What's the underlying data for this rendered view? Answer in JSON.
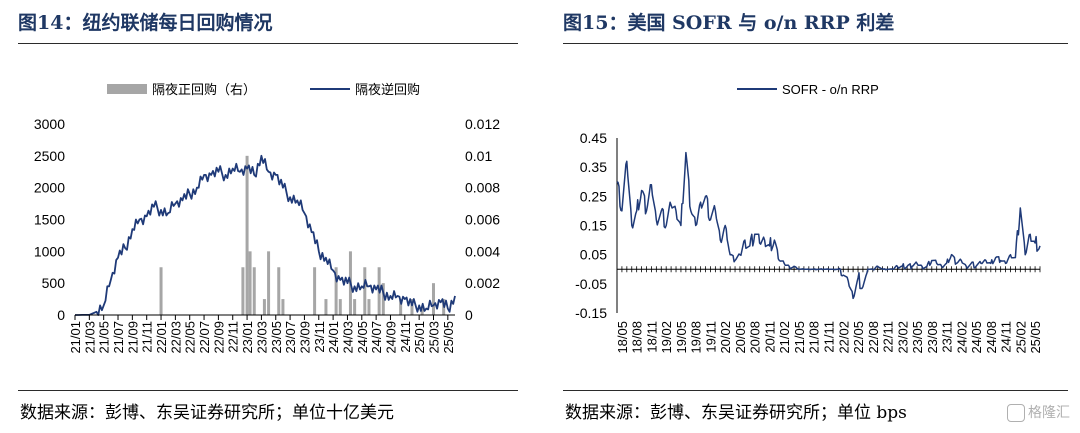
{
  "left": {
    "title": "图14：纽约联储每日回购情况",
    "source": "数据来源：彭博、东吴证券研究所；单位十亿美元"
  },
  "right": {
    "title": "图15：美国 SOFR 与 o/n RRP 利差",
    "source": "数据来源：彭博、东吴证券研究所；单位 bps"
  },
  "watermark": "格隆汇",
  "colors": {
    "navy": "#1f3a78",
    "bar_gray": "#a6a6a6",
    "title": "#1f3864"
  },
  "chart_data": [
    {
      "type": "line",
      "title": "",
      "legend_position": "top",
      "x_tick_labels": [
        "21/01",
        "21/03",
        "21/05",
        "21/07",
        "21/09",
        "21/11",
        "22/01",
        "22/03",
        "22/05",
        "22/07",
        "22/09",
        "22/11",
        "23/01",
        "23/03",
        "23/05",
        "23/07",
        "23/09",
        "23/11",
        "24/01",
        "24/03",
        "24/05",
        "24/07",
        "24/09",
        "24/11",
        "25/01",
        "25/03",
        "25/05"
      ],
      "ylim": [
        0,
        3000
      ],
      "y_ticks": [
        "0",
        "500",
        "1000",
        "1500",
        "2000",
        "2500",
        "3000"
      ],
      "y2lim": [
        0,
        0.012
      ],
      "y2_ticks": [
        "0",
        "0.002",
        "0.004",
        "0.006",
        "0.008",
        "0.01",
        "0.012"
      ],
      "series": [
        {
          "name": "隔夜逆回购",
          "axis": "left",
          "x": [
            "21/01",
            "21/03",
            "21/04",
            "21/05",
            "21/06",
            "21/07",
            "21/08",
            "21/09",
            "21/10",
            "21/11",
            "21/12",
            "22/01",
            "22/02",
            "22/03",
            "22/04",
            "22/05",
            "22/06",
            "22/07",
            "22/08",
            "22/09",
            "22/10",
            "22/11",
            "22/12",
            "23/01",
            "23/02",
            "23/03",
            "23/04",
            "23/05",
            "23/06",
            "23/07",
            "23/08",
            "23/09",
            "23/10",
            "23/11",
            "23/12",
            "24/01",
            "24/02",
            "24/03",
            "24/04",
            "24/05",
            "24/06",
            "24/07",
            "24/08",
            "24/09",
            "24/10",
            "24/11",
            "24/12",
            "25/01",
            "25/02",
            "25/03",
            "25/04",
            "25/05",
            "25/06"
          ],
          "values": [
            0,
            2,
            50,
            150,
            550,
            900,
            1050,
            1350,
            1500,
            1550,
            1700,
            1650,
            1600,
            1750,
            1800,
            1900,
            2000,
            2200,
            2200,
            2250,
            2200,
            2300,
            2250,
            2300,
            2200,
            2500,
            2250,
            2200,
            2000,
            1850,
            1800,
            1600,
            1300,
            1000,
            900,
            700,
            550,
            500,
            450,
            450,
            450,
            400,
            350,
            300,
            300,
            250,
            150,
            150,
            100,
            150,
            200,
            100,
            300
          ]
        },
        {
          "name": "隔夜正回购（右）",
          "type": "bar",
          "axis": "right",
          "x": [
            "22/01",
            "22/12",
            "23/01",
            "23/01",
            "23/02",
            "23/03",
            "23/04",
            "23/05",
            "23/06",
            "23/10",
            "23/12",
            "24/01",
            "24/02",
            "24/03",
            "24/04",
            "24/05",
            "24/06",
            "24/07",
            "24/08",
            "24/10",
            "24/12",
            "25/01",
            "25/03",
            "25/04"
          ],
          "values": [
            0.003,
            0.003,
            0.01,
            0.004,
            0.003,
            0.001,
            0.004,
            0.003,
            0.001,
            0.003,
            0.001,
            0.003,
            0.001,
            0.004,
            0.001,
            0.003,
            0.001,
            0.003,
            0.002,
            0.001,
            0.001,
            0.0005,
            0.002,
            0.001
          ]
        }
      ]
    },
    {
      "type": "line",
      "title": "",
      "legend_position": "top",
      "x_tick_labels": [
        "18/05",
        "18/08",
        "18/11",
        "19/02",
        "19/05",
        "19/08",
        "19/11",
        "20/02",
        "20/05",
        "20/08",
        "20/11",
        "21/02",
        "21/05",
        "21/08",
        "21/11",
        "22/02",
        "22/05",
        "22/08",
        "22/11",
        "23/02",
        "23/05",
        "23/08",
        "23/11",
        "24/02",
        "24/05",
        "24/08",
        "24/11",
        "25/02",
        "25/05"
      ],
      "ylim": [
        -0.15,
        0.45
      ],
      "y_ticks": [
        "-0.15",
        "-0.05",
        "0.05",
        "0.15",
        "0.25",
        "0.35",
        "0.45"
      ],
      "series": [
        {
          "name": "SOFR - o/n RRP",
          "x": [
            "18/04",
            "18/05",
            "18/06",
            "18/07",
            "18/08",
            "18/09",
            "18/10",
            "18/11",
            "18/12",
            "19/01",
            "19/02",
            "19/03",
            "19/04",
            "19/05",
            "19/06",
            "19/07",
            "19/08",
            "19/09",
            "19/10",
            "19/11",
            "19/12",
            "20/01",
            "20/02",
            "20/03",
            "20/04",
            "20/05",
            "20/06",
            "20/07",
            "20/08",
            "20/09",
            "20/10",
            "20/11",
            "20/12",
            "21/01",
            "21/02",
            "21/03",
            "21/04",
            "21/05",
            "21/06",
            "21/07",
            "21/08",
            "21/09",
            "21/10",
            "21/11",
            "21/12",
            "22/01",
            "22/02",
            "22/03",
            "22/04",
            "22/05",
            "22/06",
            "22/07",
            "22/08",
            "22/09",
            "22/10",
            "22/11",
            "22/12",
            "23/01",
            "23/02",
            "23/03",
            "23/04",
            "23/05",
            "23/06",
            "23/07",
            "23/08",
            "23/09",
            "23/10",
            "23/11",
            "23/12",
            "24/01",
            "24/02",
            "24/03",
            "24/04",
            "24/05",
            "24/06",
            "24/07",
            "24/08",
            "24/09",
            "24/10",
            "24/11",
            "24/12",
            "25/01",
            "25/02",
            "25/03",
            "25/04",
            "25/05",
            "25/06"
          ],
          "values": [
            0.3,
            0.2,
            0.37,
            0.15,
            0.2,
            0.27,
            0.2,
            0.29,
            0.17,
            0.2,
            0.15,
            0.22,
            0.2,
            0.15,
            0.4,
            0.2,
            0.15,
            0.23,
            0.25,
            0.17,
            0.2,
            0.1,
            0.15,
            0.05,
            0.03,
            0.05,
            0.1,
            0.08,
            0.12,
            0.09,
            0.1,
            0.08,
            0.1,
            0.03,
            0.02,
            0.01,
            0.01,
            0.0,
            0.0,
            0.0,
            0.0,
            0.0,
            0.0,
            0.0,
            0.0,
            0.0,
            -0.02,
            -0.04,
            -0.1,
            -0.03,
            -0.06,
            0.0,
            0.0,
            0.01,
            0.0,
            0.0,
            0.0,
            0.01,
            0.01,
            0.01,
            0.01,
            0.02,
            0.01,
            0.01,
            0.03,
            0.02,
            0.01,
            0.02,
            0.05,
            0.02,
            0.03,
            0.01,
            0.02,
            0.01,
            0.02,
            0.03,
            0.02,
            0.04,
            0.03,
            0.02,
            0.05,
            0.04,
            0.21,
            0.05,
            0.12,
            0.09,
            0.08
          ]
        }
      ]
    }
  ]
}
